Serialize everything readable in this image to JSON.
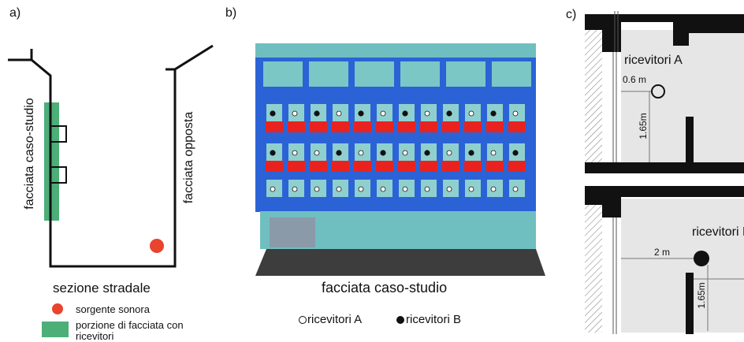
{
  "panel_a": {
    "label": "a)",
    "left_facade_label": "facciata caso-studio",
    "right_facade_label": "facciata opposta",
    "section_title": "sezione stradale",
    "legend_source": "sorgente sonora",
    "legend_receivers_line1": "porzione di facciata con",
    "legend_receivers_line2": "ricevitori",
    "source_color": "#e8442e",
    "receivers_color": "#4caf78"
  },
  "panel_b": {
    "label": "b)",
    "caption": "facciata caso-studio",
    "legend_a": "ricevitori A",
    "legend_b": "ricevitori B",
    "facade_color": "#2b63d6",
    "window_color": "#8fd0cf",
    "balcony_color": "#e8231f",
    "ground_color": "#3d3d3d",
    "row1_types": [
      "B",
      "A",
      "B",
      "A",
      "B",
      "A",
      "B",
      "A",
      "B",
      "A",
      "B",
      "A"
    ],
    "row2_types": [
      "B",
      "A",
      "A",
      "B",
      "A",
      "B",
      "A",
      "B",
      "A",
      "B",
      "A",
      "B"
    ],
    "row3_types": [
      "A",
      "A",
      "A",
      "A",
      "A",
      "A",
      "A",
      "A",
      "A",
      "A",
      "A",
      "A"
    ]
  },
  "panel_c": {
    "label": "c)",
    "top_receiver_label": "ricevitori A",
    "top_horizontal_dim": "0.6 m",
    "top_vertical_dim": "1.65m",
    "bottom_receiver_label": "ricevitori B",
    "bottom_horizontal_dim": "2 m",
    "bottom_vertical_dim": "1.65m"
  }
}
